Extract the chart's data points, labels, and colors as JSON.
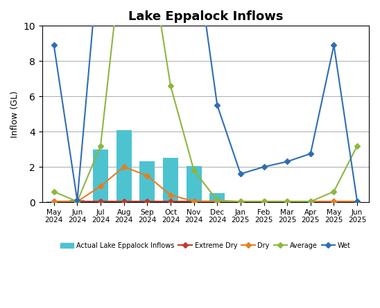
{
  "title": "Lake Eppalock Inflows",
  "ylabel": "Inflow (GL)",
  "categories": [
    "May\n2024",
    "Jun\n2024",
    "Jul\n2024",
    "Aug\n2024",
    "Sep\n2024",
    "Oct\n2024",
    "Nov\n2024",
    "Dec\n2024",
    "Jan\n2025",
    "Feb\n2025",
    "Mar\n2025",
    "Apr\n2025",
    "May\n2025",
    "Jun\n2025"
  ],
  "bar_values": [
    0.05,
    0.1,
    3.0,
    4.1,
    2.3,
    2.5,
    2.05,
    0.5,
    null,
    null,
    null,
    null,
    null,
    null
  ],
  "bar_color": "#4dc3d0",
  "extreme_dry_vals": [
    0.03,
    0.03,
    0.03,
    0.03,
    0.03,
    0.03,
    0.03,
    0.03,
    0.03,
    0.03,
    0.03,
    0.03,
    0.03,
    0.03
  ],
  "dry_vals": [
    0.03,
    0.03,
    0.9,
    2.0,
    1.5,
    0.4,
    0.05,
    0.05,
    0.03,
    0.03,
    0.03,
    0.03,
    0.03,
    0.03
  ],
  "average_vals": [
    0.6,
    0.03,
    3.2,
    15.0,
    15.0,
    6.6,
    1.8,
    0.1,
    0.03,
    0.03,
    0.03,
    0.03,
    0.6,
    3.2
  ],
  "wet_vals": [
    8.9,
    0.1,
    15.0,
    15.0,
    15.0,
    15.0,
    15.0,
    5.5,
    1.6,
    2.0,
    2.3,
    2.75,
    8.9,
    0.03
  ],
  "extreme_dry_color": "#c0392b",
  "dry_color": "#e67e22",
  "average_color": "#8db640",
  "wet_color": "#2e6db4",
  "ylim": [
    0,
    10
  ],
  "yticks": [
    0,
    2,
    4,
    6,
    8,
    10
  ],
  "marker": "D",
  "marker_size": 4,
  "line_width": 1.5
}
